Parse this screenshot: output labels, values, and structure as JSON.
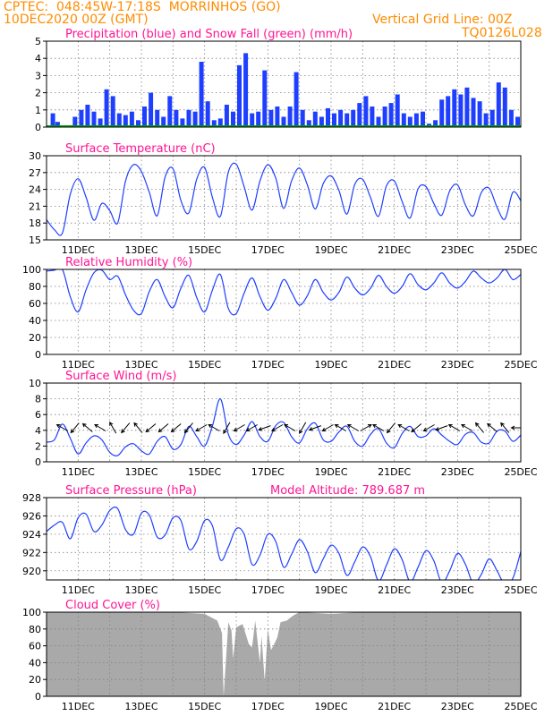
{
  "header": {
    "line1": "CPTEC:  048:45W-17:18S  MORRINHOS (GO)",
    "line2": "10DEC2020 00Z (GMT)",
    "vgrid": "Vertical Grid Line: 00Z",
    "code": "TQ0126L028"
  },
  "colors": {
    "header": "#ff8c00",
    "title": "#ff1493",
    "line": "#1f3fff",
    "precip": "#1f3fff",
    "snow": "#00a000",
    "cloud": "#a9a9a9",
    "arrow": "#000000"
  },
  "chart_data": [
    {
      "type": "bar",
      "title": "Precipitation (blue) and Snow Fall (green) (mm/h)",
      "ylim": [
        0,
        5
      ],
      "yticks": [
        0,
        1,
        2,
        3,
        4,
        5
      ],
      "xticks": [],
      "grid": true,
      "series": [
        {
          "name": "Precipitation",
          "x_days": [
            10.2,
            10.35,
            10.6,
            10.9,
            11.1,
            11.3,
            11.5,
            11.7,
            11.9,
            12.1,
            12.3,
            12.5,
            12.7,
            12.9,
            13.1,
            13.3,
            13.5,
            13.7,
            13.9,
            14.1,
            14.3,
            14.5,
            14.7,
            14.9,
            15.1,
            15.3,
            15.5,
            15.7,
            15.9,
            16.1,
            16.3,
            16.5,
            16.7,
            16.9,
            17.1,
            17.3,
            17.5,
            17.7,
            17.9,
            18.1,
            18.3,
            18.5,
            18.7,
            18.9,
            19.1,
            19.3,
            19.5,
            19.7,
            19.9,
            20.1,
            20.3,
            20.5,
            20.7,
            20.9,
            21.1,
            21.3,
            21.5,
            21.7,
            21.9,
            22.1,
            22.3,
            22.5,
            22.7,
            22.9,
            23.1,
            23.3,
            23.5,
            23.7,
            23.9,
            24.1,
            24.3,
            24.5,
            24.7,
            24.9
          ],
          "values": [
            0.8,
            0.3,
            0.1,
            0.6,
            1.0,
            1.3,
            0.9,
            0.5,
            2.2,
            1.8,
            0.8,
            0.7,
            0.9,
            0.4,
            1.2,
            2.0,
            1.0,
            0.6,
            1.8,
            1.0,
            0.5,
            1.0,
            0.9,
            3.8,
            1.5,
            0.4,
            0.5,
            1.3,
            0.9,
            3.6,
            4.3,
            0.8,
            0.9,
            3.3,
            1.0,
            1.2,
            0.6,
            1.2,
            3.2,
            1.0,
            0.4,
            0.9,
            0.6,
            1.1,
            0.8,
            1.0,
            0.8,
            1.0,
            1.4,
            1.8,
            1.2,
            0.6,
            1.2,
            1.4,
            1.9,
            0.8,
            0.6,
            0.8,
            0.9,
            0.2,
            0.4,
            1.6,
            1.8,
            2.2,
            1.9,
            2.3,
            1.7,
            1.5,
            0.8,
            1.0,
            2.6,
            2.3,
            1.0,
            0.6
          ]
        },
        {
          "name": "Snow Fall",
          "values": [
            0
          ]
        }
      ]
    },
    {
      "type": "line",
      "title": "Surface Temperature (nC)",
      "ylim": [
        15,
        30
      ],
      "yticks": [
        15,
        18,
        21,
        24,
        27,
        30
      ],
      "xticks": [
        "11DEC",
        "13DEC",
        "15DEC",
        "17DEC",
        "19DEC",
        "21DEC",
        "23DEC",
        "25DEC"
      ],
      "grid": true,
      "series": [
        {
          "name": "Temperature",
          "x_days": [
            10,
            10.25,
            10.5,
            10.75,
            11,
            11.25,
            11.5,
            11.75,
            12,
            12.25,
            12.5,
            12.75,
            13,
            13.25,
            13.5,
            13.75,
            14,
            14.25,
            14.5,
            14.75,
            15,
            15.25,
            15.5,
            15.75,
            16,
            16.25,
            16.5,
            16.75,
            17,
            17.25,
            17.5,
            17.75,
            18,
            18.25,
            18.5,
            18.75,
            19,
            19.25,
            19.5,
            19.75,
            20,
            20.25,
            20.5,
            20.75,
            21,
            21.25,
            21.5,
            21.75,
            22,
            22.25,
            22.5,
            22.75,
            23,
            23.25,
            23.5,
            23.75,
            24,
            24.25,
            24.5,
            24.75,
            25
          ],
          "values": [
            18.6,
            16.8,
            16.2,
            23.1,
            25.9,
            22.6,
            18.5,
            21.5,
            20.2,
            18.0,
            25.5,
            28.4,
            27.2,
            23.5,
            19.3,
            26.2,
            27.7,
            22.0,
            19.8,
            25.8,
            27.9,
            22.5,
            19.2,
            27.1,
            28.5,
            24.5,
            20.3,
            25.5,
            28.4,
            26.0,
            20.6,
            25.5,
            27.8,
            24.8,
            20.5,
            25.0,
            26.4,
            23.8,
            19.6,
            24.9,
            25.8,
            22.5,
            19.2,
            24.6,
            25.5,
            21.8,
            18.9,
            24.1,
            24.5,
            21.5,
            19.4,
            23.7,
            24.8,
            21.2,
            19.3,
            23.4,
            24.2,
            20.8,
            18.7,
            23.5,
            22.0
          ]
        }
      ]
    },
    {
      "type": "line",
      "title": "Relative Humidity (%)",
      "ylim": [
        0,
        100
      ],
      "yticks": [
        0,
        20,
        40,
        60,
        80,
        100
      ],
      "xticks": [
        "11DEC",
        "13DEC",
        "15DEC",
        "17DEC",
        "19DEC",
        "21DEC",
        "23DEC",
        "25DEC"
      ],
      "grid": true,
      "series": [
        {
          "name": "Relative Humidity",
          "x_days": [
            10,
            10.25,
            10.5,
            10.75,
            11,
            11.25,
            11.5,
            11.75,
            12,
            12.25,
            12.5,
            12.75,
            13,
            13.25,
            13.5,
            13.75,
            14,
            14.25,
            14.5,
            14.75,
            15,
            15.25,
            15.5,
            15.75,
            16,
            16.25,
            16.5,
            16.75,
            17,
            17.25,
            17.5,
            17.75,
            18,
            18.25,
            18.5,
            18.75,
            19,
            19.25,
            19.5,
            19.75,
            20,
            20.25,
            20.5,
            20.75,
            21,
            21.25,
            21.5,
            21.75,
            22,
            22.25,
            22.5,
            22.75,
            23,
            23.25,
            23.5,
            23.75,
            24,
            24.25,
            24.5,
            24.75,
            25
          ],
          "values": [
            98,
            99,
            100,
            68,
            50,
            76,
            96,
            99,
            88,
            92,
            70,
            52,
            48,
            74,
            88,
            68,
            55,
            78,
            93,
            67,
            50,
            76,
            94,
            54,
            48,
            72,
            90,
            68,
            52,
            66,
            88,
            73,
            58,
            69,
            88,
            73,
            64,
            73,
            91,
            78,
            70,
            78,
            93,
            80,
            72,
            80,
            95,
            82,
            76,
            84,
            96,
            84,
            78,
            86,
            98,
            90,
            84,
            90,
            100,
            88,
            94
          ]
        }
      ]
    },
    {
      "type": "line",
      "title": "Surface Wind (m/s)",
      "ylim": [
        0,
        10
      ],
      "yticks": [
        0,
        2,
        4,
        6,
        8,
        10
      ],
      "xticks": [
        "11DEC",
        "13DEC",
        "15DEC",
        "17DEC",
        "19DEC",
        "21DEC",
        "23DEC",
        "25DEC"
      ],
      "grid": true,
      "series": [
        {
          "name": "Wind speed",
          "x_days": [
            10,
            10.25,
            10.5,
            10.75,
            11,
            11.25,
            11.5,
            11.75,
            12,
            12.25,
            12.5,
            12.75,
            13,
            13.25,
            13.5,
            13.75,
            14,
            14.25,
            14.5,
            14.75,
            15,
            15.25,
            15.5,
            15.75,
            16,
            16.25,
            16.5,
            16.75,
            17,
            17.25,
            17.5,
            17.75,
            18,
            18.25,
            18.5,
            18.75,
            19,
            19.25,
            19.5,
            19.75,
            20,
            20.25,
            20.5,
            20.75,
            21,
            21.25,
            21.5,
            21.75,
            22,
            22.25,
            22.5,
            22.75,
            23,
            23.25,
            23.5,
            23.75,
            24,
            24.25,
            24.5,
            24.75,
            25
          ],
          "values": [
            2.5,
            2.8,
            4.8,
            3.0,
            1.0,
            2.4,
            3.3,
            2.8,
            1.2,
            0.8,
            1.9,
            2.3,
            1.4,
            1.0,
            2.6,
            3.2,
            1.6,
            2.2,
            4.5,
            3.2,
            2.0,
            4.6,
            8.0,
            3.5,
            2.2,
            3.4,
            5.1,
            3.2,
            2.6,
            4.6,
            5.0,
            3.2,
            2.4,
            4.2,
            4.9,
            2.8,
            2.6,
            3.8,
            4.5,
            2.6,
            2.0,
            3.5,
            4.2,
            2.4,
            1.8,
            3.6,
            4.5,
            3.2,
            3.3,
            4.2,
            3.4,
            2.6,
            2.2,
            3.5,
            3.7,
            2.5,
            2.4,
            3.9,
            3.9,
            2.6,
            3.4
          ]
        }
      ],
      "arrows_deg": [
        300,
        220,
        310,
        300,
        330,
        220,
        320,
        230,
        230,
        230,
        220,
        240,
        300,
        210,
        240,
        240,
        250,
        240,
        300,
        210,
        250,
        240,
        300,
        300,
        60,
        300,
        220,
        300,
        230,
        240,
        250,
        300,
        300,
        320,
        310,
        320,
        270
      ]
    },
    {
      "type": "line",
      "title": "Surface Pressure (hPa)",
      "annotation": "Model Altitude: 789.687 m",
      "ylim": [
        919,
        928
      ],
      "yticks": [
        920,
        922,
        924,
        926,
        928
      ],
      "xticks": [
        "11DEC",
        "13DEC",
        "15DEC",
        "17DEC",
        "19DEC",
        "21DEC",
        "23DEC",
        "25DEC"
      ],
      "grid": true,
      "series": [
        {
          "name": "Pressure",
          "x_days": [
            10,
            10.25,
            10.5,
            10.75,
            11,
            11.25,
            11.5,
            11.75,
            12,
            12.25,
            12.5,
            12.75,
            13,
            13.25,
            13.5,
            13.75,
            14,
            14.25,
            14.5,
            14.75,
            15,
            15.25,
            15.5,
            15.75,
            16,
            16.25,
            16.5,
            16.75,
            17,
            17.25,
            17.5,
            17.75,
            18,
            18.25,
            18.5,
            18.75,
            19,
            19.25,
            19.5,
            19.75,
            20,
            20.25,
            20.5,
            20.75,
            21,
            21.25,
            21.5,
            21.75,
            22,
            22.25,
            22.5,
            22.75,
            23,
            23.25,
            23.5,
            23.75,
            24,
            24.25,
            24.5,
            24.75,
            25
          ],
          "values": [
            924.3,
            925.0,
            925.3,
            923.5,
            925.8,
            926.2,
            924.3,
            925.0,
            926.6,
            926.8,
            924.5,
            924.0,
            926.3,
            926.1,
            923.7,
            923.9,
            925.8,
            925.5,
            922.4,
            923.2,
            925.5,
            924.9,
            921.2,
            922.6,
            924.6,
            924.0,
            920.7,
            921.7,
            924.0,
            923.2,
            920.4,
            921.8,
            923.4,
            922.1,
            919.8,
            921.3,
            922.8,
            921.9,
            919.5,
            921.0,
            922.6,
            921.5,
            918.9,
            920.6,
            922.4,
            921.2,
            918.8,
            920.4,
            922.2,
            921.1,
            918.7,
            920.0,
            921.9,
            920.7,
            918.6,
            919.6,
            921.3,
            920.0,
            918.5,
            919.2,
            922.1
          ]
        }
      ]
    },
    {
      "type": "area",
      "title": "Cloud Cover (%)",
      "ylim": [
        0,
        100
      ],
      "yticks": [
        0,
        20,
        40,
        60,
        80,
        100
      ],
      "xticks": [
        "11DEC",
        "13DEC",
        "15DEC",
        "17DEC",
        "19DEC",
        "21DEC",
        "23DEC",
        "25DEC"
      ],
      "grid": true,
      "series": [
        {
          "name": "Cloud Cover",
          "x_days": [
            10,
            11,
            12,
            13,
            14,
            15,
            15.15,
            15.4,
            15.55,
            15.6,
            15.75,
            15.85,
            15.9,
            16,
            16.2,
            16.4,
            16.5,
            16.6,
            16.75,
            16.8,
            16.9,
            17,
            17.1,
            17.2,
            17.3,
            17.4,
            17.6,
            17.8,
            18,
            19,
            20,
            21,
            22,
            23,
            24,
            25
          ],
          "values": [
            100,
            100,
            100,
            100,
            100,
            98,
            95,
            90,
            75,
            0,
            88,
            78,
            45,
            82,
            86,
            62,
            58,
            90,
            40,
            72,
            18,
            80,
            55,
            62,
            70,
            88,
            90,
            96,
            100,
            98,
            100,
            100,
            100,
            100,
            100,
            100
          ]
        }
      ]
    }
  ]
}
